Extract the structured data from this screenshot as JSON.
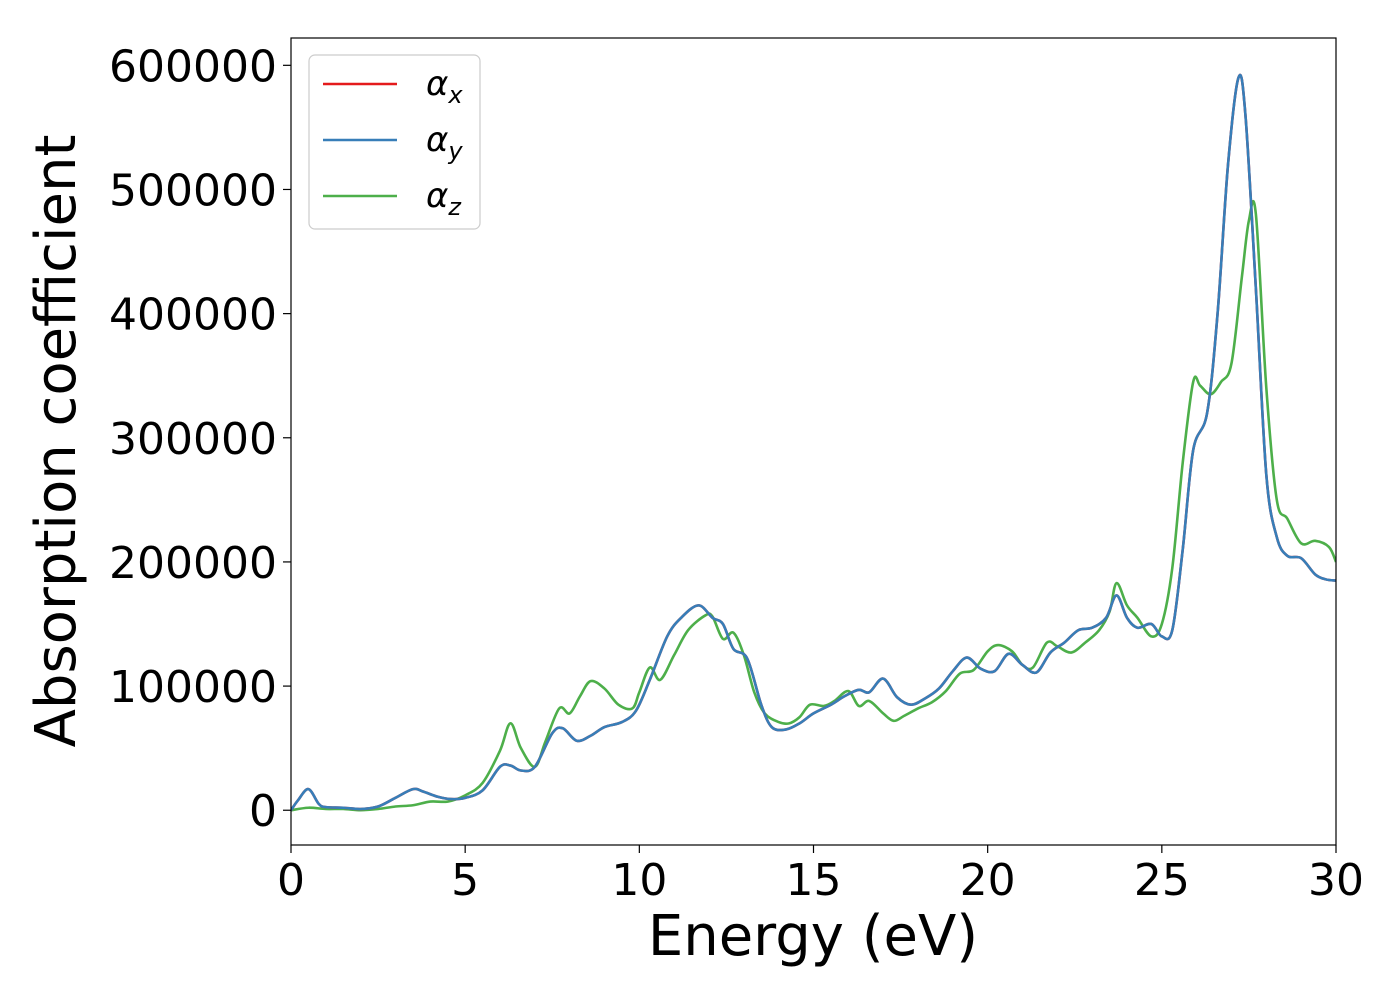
{
  "chart_data": {
    "type": "line",
    "title": "",
    "xlabel": "Energy (eV)",
    "ylabel": "Absorption coefficient",
    "xlim": [
      0,
      30
    ],
    "ylim": [
      -28000,
      622000
    ],
    "x_ticks": [
      0,
      5,
      10,
      15,
      20,
      25,
      30
    ],
    "y_ticks": [
      0,
      100000,
      200000,
      300000,
      400000,
      500000,
      600000
    ],
    "grid": false,
    "legend_position": "top-left",
    "series": [
      {
        "name": "α_x",
        "symbol": "α",
        "subscript": "x",
        "color": "#e41a1c",
        "x": [
          0,
          0.2,
          0.5,
          0.8,
          1.0,
          1.5,
          2.0,
          2.5,
          3.0,
          3.5,
          3.8,
          4.2,
          4.6,
          5.0,
          5.5,
          6.0,
          6.3,
          6.6,
          7.0,
          7.5,
          7.8,
          8.2,
          8.6,
          9.0,
          9.5,
          9.9,
          10.3,
          10.8,
          11.2,
          11.7,
          12.1,
          12.4,
          12.7,
          13.1,
          13.5,
          13.8,
          14.2,
          14.6,
          15.0,
          15.5,
          15.9,
          16.3,
          16.6,
          17.0,
          17.4,
          17.8,
          18.2,
          18.6,
          19.0,
          19.4,
          19.8,
          20.2,
          20.6,
          21.0,
          21.4,
          21.8,
          22.2,
          22.6,
          23.0,
          23.4,
          23.7,
          24.0,
          24.3,
          24.7,
          25.0,
          25.3,
          25.6,
          25.9,
          26.3,
          26.6,
          26.9,
          27.2,
          27.4,
          27.7,
          28.0,
          28.3,
          28.6,
          29.0,
          29.4,
          29.7,
          30.0
        ],
        "values": [
          0,
          8000,
          17000,
          5000,
          2500,
          2000,
          1000,
          3000,
          10000,
          17000,
          15000,
          11000,
          9000,
          10000,
          16000,
          35000,
          36000,
          32000,
          35000,
          62000,
          66000,
          56000,
          60000,
          67000,
          71000,
          80000,
          105000,
          140000,
          155000,
          165000,
          155000,
          150000,
          130000,
          122000,
          85000,
          67000,
          65000,
          70000,
          78000,
          85000,
          92000,
          97000,
          95000,
          106000,
          91000,
          85000,
          90000,
          98000,
          112000,
          123000,
          114000,
          112000,
          126000,
          117000,
          111000,
          127000,
          135000,
          145000,
          147000,
          155000,
          173000,
          155000,
          147000,
          150000,
          140000,
          145000,
          210000,
          290000,
          320000,
          400000,
          520000,
          590000,
          560000,
          420000,
          270000,
          220000,
          205000,
          203000,
          190000,
          186000,
          185000
        ]
      },
      {
        "name": "α_y",
        "symbol": "α",
        "subscript": "y",
        "color": "#377eb8",
        "x": [
          0,
          0.2,
          0.5,
          0.8,
          1.0,
          1.5,
          2.0,
          2.5,
          3.0,
          3.5,
          3.8,
          4.2,
          4.6,
          5.0,
          5.5,
          6.0,
          6.3,
          6.6,
          7.0,
          7.5,
          7.8,
          8.2,
          8.6,
          9.0,
          9.5,
          9.9,
          10.3,
          10.8,
          11.2,
          11.7,
          12.1,
          12.4,
          12.7,
          13.1,
          13.5,
          13.8,
          14.2,
          14.6,
          15.0,
          15.5,
          15.9,
          16.3,
          16.6,
          17.0,
          17.4,
          17.8,
          18.2,
          18.6,
          19.0,
          19.4,
          19.8,
          20.2,
          20.6,
          21.0,
          21.4,
          21.8,
          22.2,
          22.6,
          23.0,
          23.4,
          23.7,
          24.0,
          24.3,
          24.7,
          25.0,
          25.3,
          25.6,
          25.9,
          26.3,
          26.6,
          26.9,
          27.2,
          27.4,
          27.7,
          28.0,
          28.3,
          28.6,
          29.0,
          29.4,
          29.7,
          30.0
        ],
        "values": [
          0,
          8000,
          17000,
          5000,
          2500,
          2000,
          1000,
          3000,
          10000,
          17000,
          15000,
          11000,
          9000,
          10000,
          16000,
          35000,
          36000,
          32000,
          35000,
          62000,
          66000,
          56000,
          60000,
          67000,
          71000,
          80000,
          105000,
          140000,
          155000,
          165000,
          155000,
          150000,
          130000,
          122000,
          85000,
          67000,
          65000,
          70000,
          78000,
          85000,
          92000,
          97000,
          95000,
          106000,
          91000,
          85000,
          90000,
          98000,
          112000,
          123000,
          114000,
          112000,
          126000,
          117000,
          111000,
          127000,
          135000,
          145000,
          147000,
          155000,
          173000,
          155000,
          147000,
          150000,
          140000,
          145000,
          210000,
          290000,
          320000,
          400000,
          520000,
          590000,
          560000,
          420000,
          270000,
          220000,
          205000,
          203000,
          190000,
          186000,
          185000
        ]
      },
      {
        "name": "α_z",
        "symbol": "α",
        "subscript": "z",
        "color": "#4daf4a",
        "x": [
          0,
          0.5,
          1.0,
          1.5,
          2.0,
          2.5,
          3.0,
          3.5,
          4.0,
          4.5,
          5.0,
          5.5,
          6.0,
          6.3,
          6.6,
          7.0,
          7.3,
          7.7,
          8.0,
          8.3,
          8.6,
          9.0,
          9.4,
          9.8,
          10.0,
          10.3,
          10.6,
          11.0,
          11.4,
          11.9,
          12.1,
          12.4,
          12.7,
          13.0,
          13.3,
          13.6,
          14.0,
          14.3,
          14.6,
          14.9,
          15.3,
          15.6,
          16.0,
          16.3,
          16.6,
          17.0,
          17.3,
          17.6,
          18.0,
          18.4,
          18.8,
          19.2,
          19.6,
          20.0,
          20.3,
          20.7,
          21.0,
          21.3,
          21.7,
          22.0,
          22.4,
          22.8,
          23.2,
          23.5,
          23.7,
          24.0,
          24.3,
          24.7,
          25.0,
          25.3,
          25.6,
          25.9,
          26.1,
          26.4,
          26.7,
          27.0,
          27.3,
          27.5,
          27.7,
          28.0,
          28.3,
          28.6,
          29.0,
          29.4,
          29.8,
          30.0
        ],
        "values": [
          0,
          2000,
          1000,
          1000,
          0,
          1000,
          3000,
          4000,
          7000,
          7000,
          12000,
          22000,
          48000,
          70000,
          50000,
          35000,
          55000,
          82000,
          78000,
          92000,
          104000,
          98000,
          85000,
          82000,
          95000,
          115000,
          105000,
          125000,
          145000,
          157000,
          156000,
          138000,
          143000,
          125000,
          95000,
          78000,
          71000,
          70000,
          75000,
          85000,
          84000,
          88000,
          96000,
          84000,
          88000,
          78000,
          72000,
          76000,
          82000,
          87000,
          96000,
          110000,
          113000,
          128000,
          133000,
          128000,
          117000,
          115000,
          135000,
          132000,
          127000,
          135000,
          145000,
          160000,
          183000,
          165000,
          155000,
          140000,
          150000,
          195000,
          280000,
          345000,
          342000,
          335000,
          345000,
          360000,
          430000,
          475000,
          480000,
          340000,
          250000,
          235000,
          215000,
          217000,
          212000,
          200000
        ]
      }
    ]
  }
}
